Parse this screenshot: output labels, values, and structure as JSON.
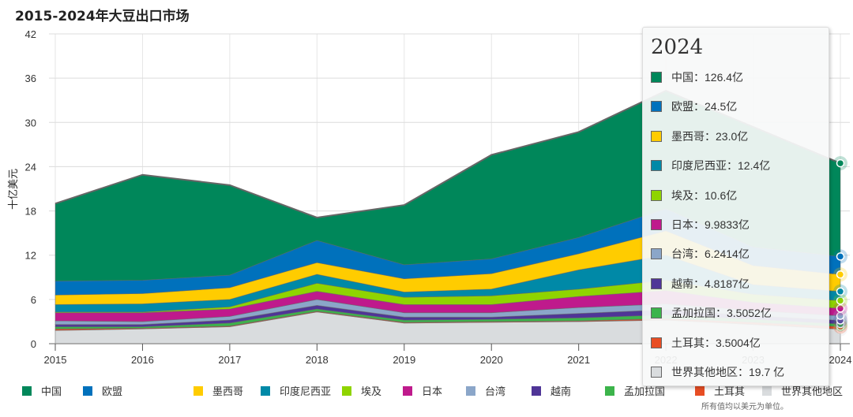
{
  "title": "2015-2024年大豆出口市场",
  "note": "所有值均以美元为单位。",
  "chart_data": {
    "type": "area",
    "stacked": true,
    "title": "2015-2024年大豆出口市场",
    "ylabel": "十亿美元",
    "xlabel": "",
    "x": [
      2015,
      2016,
      2017,
      2018,
      2019,
      2020,
      2021,
      2022,
      2023,
      2024
    ],
    "ylim": [
      0,
      42
    ],
    "yticks": [
      0,
      6,
      12,
      18,
      24,
      30,
      36,
      42
    ],
    "grid": true,
    "legend_position": "bottom",
    "series": [
      {
        "name": "世界其他地区",
        "color": "#d9dcde",
        "values": [
          1.8,
          2.0,
          2.3,
          4.3,
          2.8,
          2.9,
          3.0,
          3.2,
          2.6,
          1.97
        ]
      },
      {
        "name": "土耳其",
        "color": "#e84e24",
        "values": [
          0.2,
          0.1,
          0.1,
          0.1,
          0.1,
          0.1,
          0.1,
          0.2,
          0.3,
          0.35
        ]
      },
      {
        "name": "孟加拉国",
        "color": "#3cb44b",
        "values": [
          0.3,
          0.2,
          0.4,
          0.3,
          0.3,
          0.3,
          0.4,
          0.5,
          0.4,
          0.351
        ]
      },
      {
        "name": "越南",
        "color": "#4f3597",
        "values": [
          0.3,
          0.3,
          0.4,
          0.5,
          0.4,
          0.3,
          0.6,
          0.7,
          0.5,
          0.482
        ]
      },
      {
        "name": "台湾",
        "color": "#8ba6c9",
        "values": [
          0.5,
          0.4,
          0.5,
          0.8,
          0.6,
          0.6,
          0.8,
          0.8,
          0.7,
          0.624
        ]
      },
      {
        "name": "日本",
        "color": "#bf1a8c",
        "values": [
          1.1,
          1.2,
          1.0,
          1.1,
          1.1,
          1.1,
          1.5,
          1.8,
          1.1,
          0.998
        ]
      },
      {
        "name": "埃及",
        "color": "#8fd400",
        "values": [
          0.1,
          0.1,
          0.3,
          1.1,
          1.0,
          1.2,
          1.0,
          1.4,
          1.1,
          1.06
        ]
      },
      {
        "name": "印度尼西亚",
        "color": "#0089a7",
        "values": [
          1.0,
          1.1,
          1.0,
          1.2,
          0.7,
          0.9,
          2.6,
          3.4,
          1.3,
          1.24
        ]
      },
      {
        "name": "墨西哥",
        "color": "#ffcc00",
        "values": [
          1.3,
          1.4,
          1.6,
          1.6,
          1.8,
          2.1,
          2.2,
          3.3,
          2.6,
          2.3
        ]
      },
      {
        "name": "欧盟",
        "color": "#0071bc",
        "values": [
          1.9,
          1.8,
          1.7,
          3.0,
          1.9,
          2.0,
          2.2,
          3.0,
          2.5,
          2.45
        ]
      },
      {
        "name": "中国",
        "color": "#00875a",
        "values": [
          10.5,
          14.3,
          12.2,
          3.1,
          8.1,
          14.1,
          14.3,
          16.0,
          16.3,
          12.64
        ]
      }
    ],
    "legend": [
      {
        "label": "中国",
        "color": "#00875a"
      },
      {
        "label": "欧盟",
        "color": "#0071bc"
      },
      {
        "label": "墨西哥",
        "color": "#ffcc00"
      },
      {
        "label": "印度尼西亚",
        "color": "#0089a7"
      },
      {
        "label": "埃及",
        "color": "#8fd400"
      },
      {
        "label": "日本",
        "color": "#bf1a8c"
      },
      {
        "label": "台湾",
        "color": "#8ba6c9"
      },
      {
        "label": "越南",
        "color": "#4f3597"
      },
      {
        "label": "孟加拉国",
        "color": "#3cb44b"
      },
      {
        "label": "土耳其",
        "color": "#e84e24"
      },
      {
        "label": "世界其他地区",
        "color": "#d9dcde"
      }
    ]
  },
  "tooltip": {
    "title": "2024",
    "rows": [
      {
        "text": "中国：126.4亿",
        "color": "#00875a"
      },
      {
        "text": "欧盟：24.5亿",
        "color": "#0071bc"
      },
      {
        "text": "墨西哥：23.0亿",
        "color": "#ffcc00"
      },
      {
        "text": "印度尼西亚：12.4亿",
        "color": "#0089a7"
      },
      {
        "text": "埃及：10.6亿",
        "color": "#8fd400"
      },
      {
        "text": "日本：9.9833亿",
        "color": "#bf1a8c"
      },
      {
        "text": "台湾：6.2414亿",
        "color": "#8ba6c9"
      },
      {
        "text": "越南：4.8187亿",
        "color": "#4f3597"
      },
      {
        "text": "孟加拉国：3.5052亿",
        "color": "#3cb44b"
      },
      {
        "text": "土耳其：3.5004亿",
        "color": "#e84e24"
      },
      {
        "text": "世界其他地区：19.7 亿",
        "color": "#d9dcde"
      }
    ]
  }
}
